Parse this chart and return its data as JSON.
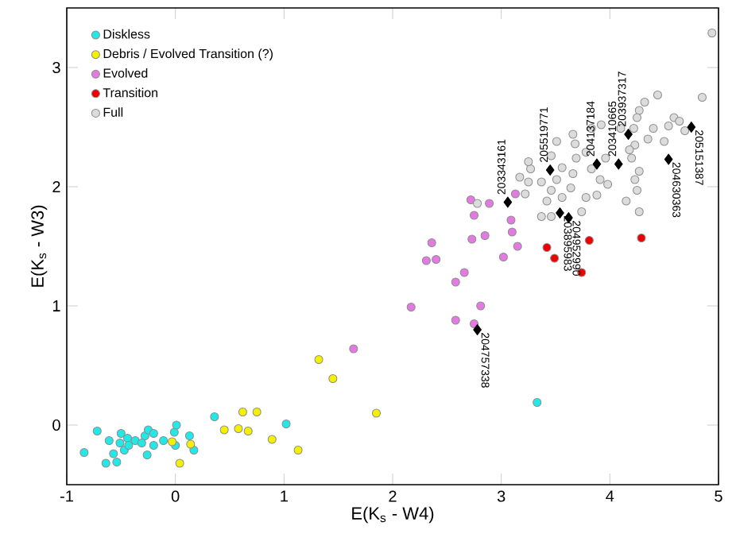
{
  "chart_data": {
    "type": "scatter",
    "xlabel": "E(K$_{s}$ - W4)",
    "ylabel": "E(K$_{s}$ - W3)",
    "xlim": [
      -1,
      5
    ],
    "ylim": [
      -0.5,
      3.5
    ],
    "xticks": [
      -1,
      0,
      1,
      2,
      3,
      4,
      5
    ],
    "yticks": [
      0,
      1,
      2,
      3
    ],
    "legend": "top left",
    "marker": "circle",
    "series": [
      {
        "name": "Diskless",
        "color": "#22e8e8",
        "x": [
          -0.84,
          -0.72,
          -0.61,
          -0.64,
          -0.57,
          -0.54,
          -0.5,
          -0.47,
          -0.44,
          -0.43,
          -0.37,
          -0.28,
          -0.26,
          -0.25,
          -0.2,
          -0.2,
          -0.11,
          -0.01,
          0.01,
          0.0,
          0.13,
          0.17,
          0.36,
          1.02,
          3.33,
          -0.51,
          -0.31
        ],
        "values": [
          -0.23,
          -0.05,
          -0.13,
          -0.32,
          -0.24,
          -0.31,
          -0.07,
          -0.21,
          -0.11,
          -0.17,
          -0.13,
          -0.09,
          -0.25,
          -0.04,
          -0.07,
          -0.17,
          -0.13,
          -0.06,
          0.0,
          -0.17,
          -0.09,
          -0.21,
          0.07,
          0.01,
          0.19,
          -0.15,
          -0.15
        ]
      },
      {
        "name": "Debris / Evolved Transition (?)",
        "color": "#f5f000",
        "x": [
          -0.03,
          0.04,
          0.14,
          0.45,
          0.58,
          0.62,
          0.67,
          0.75,
          0.89,
          1.13,
          1.32,
          1.45,
          1.85
        ],
        "values": [
          -0.14,
          -0.32,
          -0.16,
          -0.04,
          -0.03,
          0.11,
          -0.05,
          0.11,
          -0.12,
          -0.21,
          0.55,
          0.39,
          0.1
        ]
      },
      {
        "name": "Evolved",
        "color": "#e27ae2",
        "x": [
          1.64,
          2.72,
          2.75,
          2.89,
          3.13,
          3.09,
          3.1,
          3.15,
          3.02,
          2.85,
          2.73,
          2.36,
          2.4,
          2.31,
          2.66,
          2.58,
          2.17,
          2.81,
          2.58,
          2.75
        ],
        "values": [
          0.64,
          1.89,
          1.76,
          1.86,
          1.94,
          1.72,
          1.62,
          1.5,
          1.41,
          1.59,
          1.56,
          1.53,
          1.39,
          1.38,
          1.28,
          1.2,
          0.99,
          1.0,
          0.88,
          0.85
        ]
      },
      {
        "name": "Transition",
        "color": "#ee0000",
        "x": [
          3.42,
          3.49,
          3.81,
          3.74,
          4.29
        ],
        "values": [
          1.49,
          1.4,
          1.55,
          1.28,
          1.57
        ]
      },
      {
        "name": "Full",
        "color": "#dcdcdc",
        "x": [
          4.94,
          4.85,
          4.44,
          4.32,
          4.27,
          4.25,
          4.22,
          4.1,
          3.92,
          3.83,
          3.66,
          4.59,
          4.64,
          4.54,
          4.69,
          4.5,
          4.35,
          4.23,
          4.2,
          4.27,
          4.23,
          4.25,
          4.15,
          4.27,
          3.98,
          3.91,
          3.83,
          3.96,
          3.78,
          3.69,
          3.66,
          3.56,
          3.46,
          3.51,
          3.68,
          3.27,
          3.25,
          3.37,
          3.51,
          3.46,
          3.64,
          3.56,
          3.78,
          3.88,
          3.74,
          3.42,
          3.37,
          3.46,
          2.78,
          3.22,
          3.17,
          3.25,
          4.4,
          4.18
        ],
        "values": [
          3.29,
          2.75,
          2.77,
          2.71,
          2.64,
          2.58,
          2.49,
          2.49,
          2.52,
          2.49,
          2.44,
          2.58,
          2.55,
          2.51,
          2.47,
          2.38,
          2.4,
          2.35,
          2.24,
          2.13,
          2.06,
          1.97,
          1.88,
          1.79,
          2.02,
          2.06,
          2.15,
          2.24,
          2.29,
          2.24,
          2.11,
          2.16,
          2.26,
          2.38,
          2.36,
          2.15,
          2.04,
          2.04,
          2.06,
          1.97,
          1.99,
          1.91,
          1.91,
          1.93,
          1.79,
          1.88,
          1.75,
          1.75,
          1.86,
          1.94,
          2.08,
          2.21,
          2.49,
          2.31
        ]
      },
      {
        "color": "#000000",
        "marker": "diamond",
        "x": [
          3.06,
          3.45,
          3.88,
          4.08,
          4.17,
          4.75,
          4.54,
          3.54,
          3.62,
          2.78
        ],
        "values": [
          1.87,
          2.14,
          2.19,
          2.19,
          2.44,
          2.5,
          2.23,
          1.78,
          1.74,
          0.8
        ]
      }
    ],
    "annotations": [
      {
        "text": "203343161",
        "x": 3.06,
        "y": 1.87
      },
      {
        "text": "205519771",
        "x": 3.45,
        "y": 2.14
      },
      {
        "text": "204137184",
        "x": 3.88,
        "y": 2.19
      },
      {
        "text": "203410665",
        "x": 4.08,
        "y": 2.19
      },
      {
        "text": "203937317",
        "x": 4.17,
        "y": 2.44
      },
      {
        "text": "205151387",
        "x": 4.75,
        "y": 2.5
      },
      {
        "text": "204630363",
        "x": 4.54,
        "y": 2.23
      },
      {
        "text": "203895983",
        "x": 3.54,
        "y": 1.78
      },
      {
        "text": "204952990",
        "x": 3.62,
        "y": 1.74
      },
      {
        "text": "204757338",
        "x": 2.78,
        "y": 0.8
      }
    ]
  }
}
